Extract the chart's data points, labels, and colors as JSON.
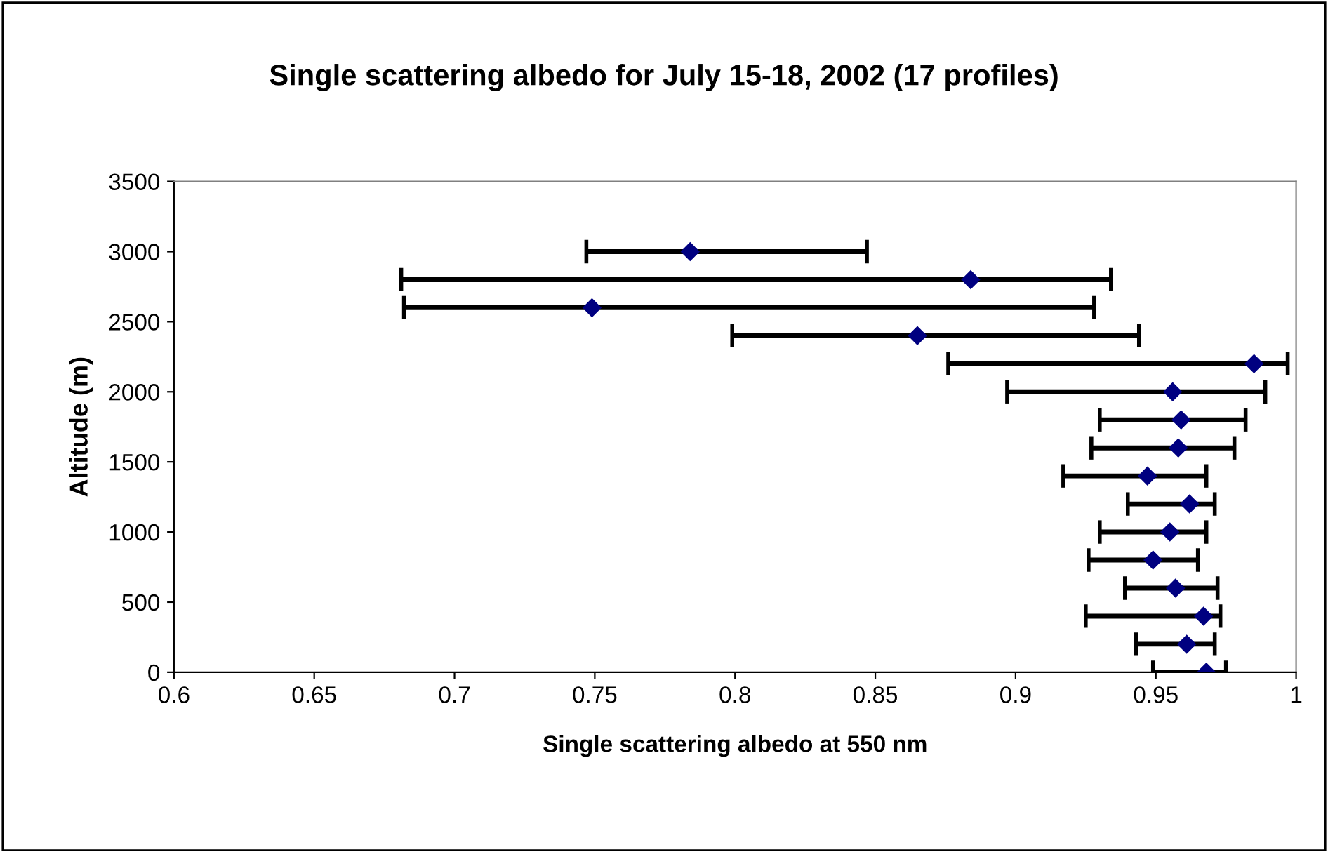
{
  "chart_data": {
    "type": "scatter",
    "title": "Single scattering albedo for July 15-18, 2002 (17 profiles)",
    "xlabel": "Single scattering albedo at 550 nm",
    "ylabel": "Altitude (m)",
    "x": [
      0.784,
      0.884,
      0.749,
      0.865,
      0.985,
      0.956,
      0.959,
      0.958,
      0.947,
      0.962,
      0.955,
      0.949,
      0.957,
      0.967,
      0.961,
      0.968
    ],
    "values": [
      3000,
      2800,
      2600,
      2400,
      2200,
      2000,
      1800,
      1600,
      1400,
      1200,
      1000,
      800,
      600,
      400,
      200,
      0
    ],
    "xerrors": [
      [
        0.747,
        0.847
      ],
      [
        0.681,
        0.934
      ],
      [
        0.682,
        0.928
      ],
      [
        0.799,
        0.944
      ],
      [
        0.876,
        0.997
      ],
      [
        0.897,
        0.989
      ],
      [
        0.93,
        0.982
      ],
      [
        0.927,
        0.978
      ],
      [
        0.917,
        0.968
      ],
      [
        0.94,
        0.971
      ],
      [
        0.93,
        0.968
      ],
      [
        0.926,
        0.965
      ],
      [
        0.939,
        0.972
      ],
      [
        0.925,
        0.973
      ],
      [
        0.943,
        0.971
      ],
      [
        0.949,
        0.975
      ]
    ],
    "color": "#000080",
    "marker": "diamond",
    "xlim": [
      0.6,
      1
    ],
    "xticks": [
      0.6,
      0.65,
      0.7,
      0.75,
      0.8,
      0.85,
      0.9,
      0.95,
      1
    ],
    "ylim": [
      0,
      3500
    ],
    "yticks": [
      0,
      500,
      1000,
      1500,
      2000,
      2500,
      3000,
      3500
    ],
    "grid": false
  }
}
